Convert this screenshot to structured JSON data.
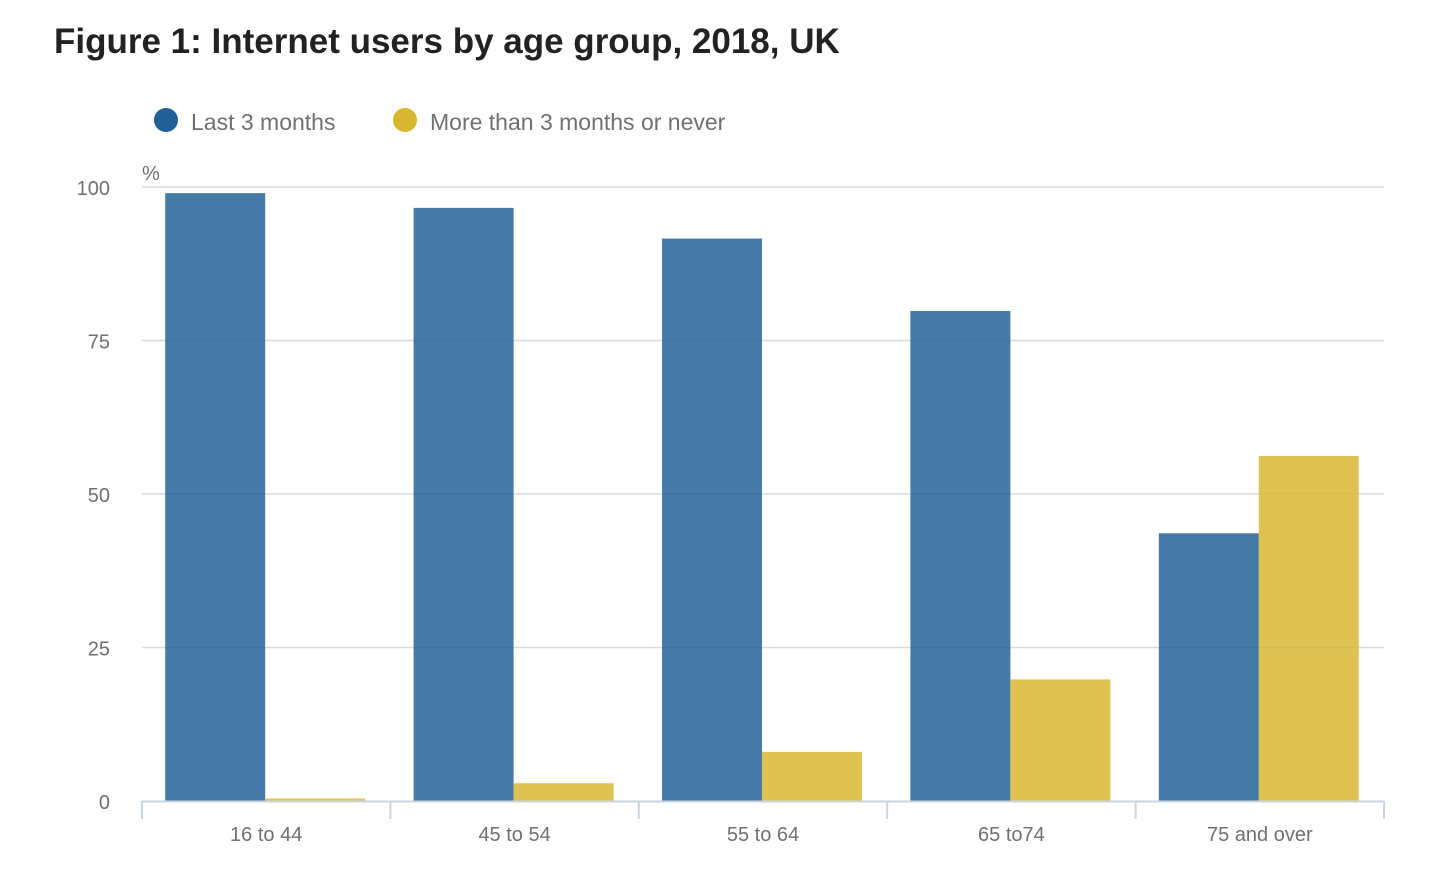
{
  "chart_data": {
    "type": "bar",
    "title": "Figure 1: Internet users by age group, 2018, UK",
    "ylabel": "%",
    "xlabel": "",
    "ylim": [
      0,
      100
    ],
    "yticks": [
      0,
      25,
      50,
      75,
      100
    ],
    "grid": true,
    "legend_position": "top-left",
    "categories": [
      "16 to 44",
      "45 to 54",
      "55 to 64",
      "65 to74",
      "75 and over"
    ],
    "series": [
      {
        "name": "Last 3 months",
        "color": "#206095",
        "values": [
          99,
          96.6,
          91.6,
          79.8,
          43.6
        ]
      },
      {
        "name": "More than 3 months or never",
        "color": "#d7b730",
        "values": [
          0.4,
          2.9,
          8,
          19.8,
          56.2
        ]
      }
    ]
  }
}
